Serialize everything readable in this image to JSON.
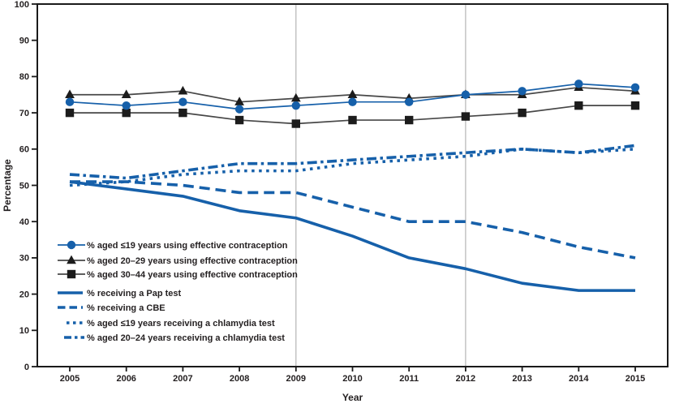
{
  "figure": {
    "background": "#ffffff"
  },
  "chart_data": {
    "type": "line",
    "title": "",
    "xlabel": "Year",
    "ylabel": "Percentage",
    "x": [
      2005,
      2006,
      2007,
      2008,
      2009,
      2010,
      2011,
      2012,
      2013,
      2014,
      2015
    ],
    "ylim": [
      0,
      100
    ],
    "ytick_step": 10,
    "gridline_years": [
      2009,
      2012
    ],
    "legend_position": "inside-left-middle",
    "colors": {
      "blue": "#1660aa",
      "black_marker": "#1c1c1c",
      "black_line": "#474747",
      "grid": "#b4b4b4",
      "axis": "#1a1a1a",
      "text": "#231f20"
    },
    "series": [
      {
        "id": "contraception-le19",
        "name": "%  aged ≤19 years using effective contraception",
        "marker": "circle",
        "style": "solid-thin",
        "color": "#1660aa",
        "line_color": "#1660aa",
        "values": [
          73,
          72,
          73,
          71,
          72,
          73,
          73,
          75,
          76,
          78,
          77
        ]
      },
      {
        "id": "contraception-20-29",
        "name": "% aged 20–29  years using effective contraception",
        "marker": "triangle",
        "style": "solid-thin",
        "color": "#1c1c1c",
        "line_color": "#474747",
        "values": [
          75,
          75,
          76,
          73,
          74,
          75,
          74,
          75,
          75,
          77,
          76
        ]
      },
      {
        "id": "contraception-30-44",
        "name": "% aged 30–44  years using effective contraception",
        "marker": "square",
        "style": "solid-thin",
        "color": "#1c1c1c",
        "line_color": "#474747",
        "values": [
          70,
          70,
          70,
          68,
          67,
          68,
          68,
          69,
          70,
          72,
          72
        ]
      },
      {
        "id": "pap-test",
        "name": "% receiving a Pap test",
        "marker": "none",
        "style": "solid-thick",
        "color": "#1660aa",
        "line_color": "#1660aa",
        "values": [
          51,
          49,
          47,
          43,
          41,
          36,
          30,
          27,
          23,
          21,
          21
        ]
      },
      {
        "id": "cbe",
        "name": "% receiving a CBE",
        "marker": "none",
        "style": "dashed",
        "color": "#1660aa",
        "line_color": "#1660aa",
        "values": [
          51,
          51,
          50,
          48,
          48,
          44,
          40,
          40,
          37,
          33,
          30
        ]
      },
      {
        "id": "chlamydia-le19",
        "name": "% aged ≤19 years receiving a chlamydia test",
        "marker": "none",
        "style": "dotted",
        "color": "#1660aa",
        "line_color": "#1660aa",
        "values": [
          50,
          51,
          53,
          54,
          54,
          56,
          57,
          58,
          60,
          59,
          60
        ]
      },
      {
        "id": "chlamydia-20-24",
        "name": "% aged 20–24 years receiving a chlamydia test",
        "marker": "none",
        "style": "dashdot",
        "color": "#1660aa",
        "line_color": "#1660aa",
        "values": [
          53,
          52,
          54,
          56,
          56,
          57,
          58,
          59,
          60,
          59,
          61
        ]
      }
    ]
  }
}
